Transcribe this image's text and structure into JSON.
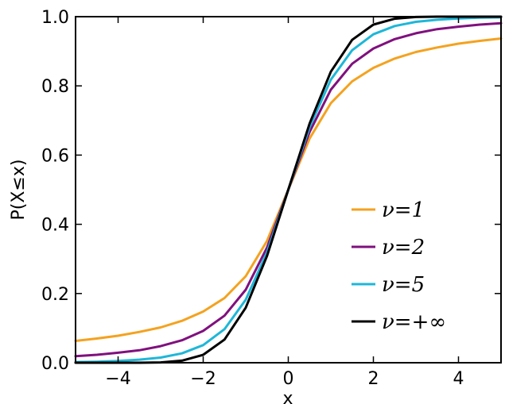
{
  "chart_data": {
    "type": "line",
    "title": "",
    "xlabel": "x",
    "ylabel": "P(X≤x)",
    "xlim": [
      -5,
      5
    ],
    "ylim": [
      0.0,
      1.0
    ],
    "grid": false,
    "legend_position": "lower-right",
    "x_ticks": [
      -4,
      -2,
      0,
      2,
      4
    ],
    "x_tick_labels": [
      "−4",
      "−2",
      "0",
      "2",
      "4"
    ],
    "y_ticks": [
      0.0,
      0.2,
      0.4,
      0.6,
      0.8,
      1.0
    ],
    "y_tick_labels": [
      "0.0",
      "0.2",
      "0.4",
      "0.6",
      "0.8",
      "1.0"
    ],
    "x": [
      -5,
      -4.5,
      -4,
      -3.5,
      -3,
      -2.5,
      -2,
      -1.5,
      -1,
      -0.5,
      0,
      0.5,
      1,
      1.5,
      2,
      2.5,
      3,
      3.5,
      4,
      4.5,
      5
    ],
    "series": [
      {
        "name": "ν=1",
        "color": "#f4a21f",
        "values": [
          0.063,
          0.07,
          0.078,
          0.089,
          0.102,
          0.121,
          0.148,
          0.187,
          0.25,
          0.352,
          0.5,
          0.648,
          0.75,
          0.813,
          0.852,
          0.879,
          0.898,
          0.911,
          0.922,
          0.93,
          0.937
        ]
      },
      {
        "name": "ν=2",
        "color": "#80107e",
        "values": [
          0.019,
          0.023,
          0.029,
          0.036,
          0.048,
          0.065,
          0.092,
          0.136,
          0.211,
          0.333,
          0.5,
          0.667,
          0.789,
          0.864,
          0.908,
          0.935,
          0.952,
          0.964,
          0.971,
          0.977,
          0.981
        ]
      },
      {
        "name": "ν=5",
        "color": "#1eb7d8",
        "values": [
          0.002,
          0.003,
          0.005,
          0.009,
          0.015,
          0.027,
          0.051,
          0.097,
          0.182,
          0.319,
          0.5,
          0.681,
          0.818,
          0.903,
          0.949,
          0.973,
          0.985,
          0.991,
          0.995,
          0.997,
          0.998
        ]
      },
      {
        "name": "ν=+∞",
        "color": "#000000",
        "values": [
          0.0,
          0.0,
          0.0,
          0.0,
          0.001,
          0.006,
          0.023,
          0.067,
          0.159,
          0.309,
          0.5,
          0.691,
          0.841,
          0.933,
          0.977,
          0.994,
          0.999,
          1.0,
          1.0,
          1.0,
          1.0
        ]
      }
    ]
  }
}
